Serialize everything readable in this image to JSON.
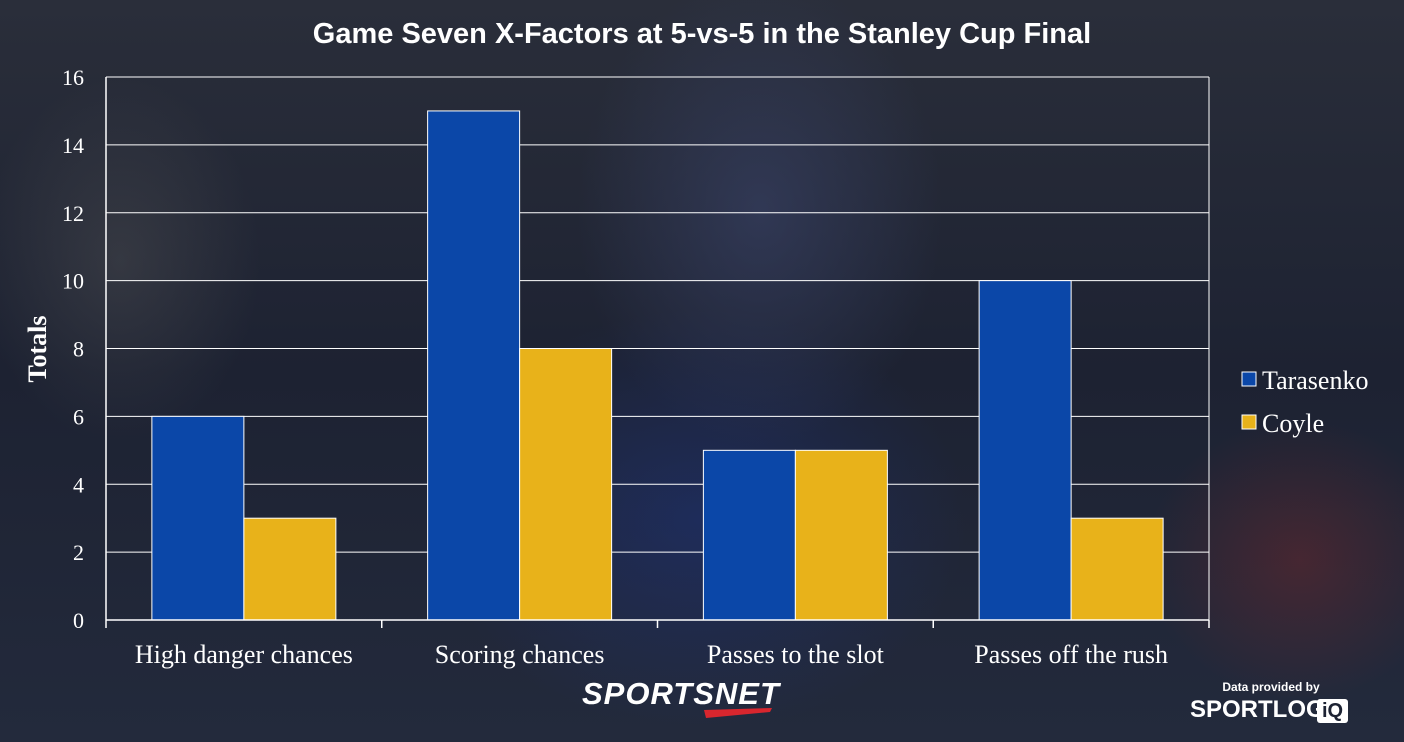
{
  "chart_data": {
    "type": "bar",
    "title": "Game Seven X-Factors at 5-vs-5 in the Stanley Cup Final",
    "xlabel": "",
    "ylabel": "Totals",
    "ylim": [
      0,
      16
    ],
    "yticks": [
      "0",
      "2",
      "4",
      "6",
      "8",
      "10",
      "12",
      "14",
      "16"
    ],
    "categories": [
      "High danger chances",
      "Scoring chances",
      "Passes to the slot",
      "Passes off the rush"
    ],
    "series": [
      {
        "name": "Tarasenko",
        "color": "#0b47a8",
        "values": [
          6,
          15,
          5,
          10
        ]
      },
      {
        "name": "Coyle",
        "color": "#e8b21a",
        "values": [
          3,
          8,
          5,
          3
        ]
      }
    ],
    "grid": true,
    "legend_position": "right"
  },
  "branding": {
    "logo": "SPORTSNET",
    "credit": "Data provided by",
    "provider": "SPORTLOG",
    "provider_badge": "iQ"
  }
}
